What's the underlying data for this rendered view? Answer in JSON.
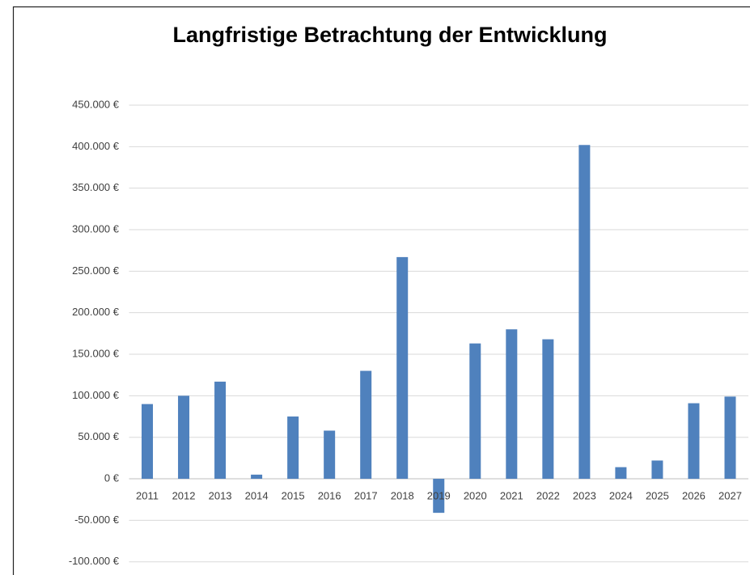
{
  "chart_data": {
    "type": "bar",
    "title": "Langfristige Betrachtung der Entwicklung",
    "categories": [
      "2011",
      "2012",
      "2013",
      "2014",
      "2015",
      "2016",
      "2017",
      "2018",
      "2019",
      "2020",
      "2021",
      "2022",
      "2023",
      "2024",
      "2025",
      "2026",
      "2027"
    ],
    "values": [
      90000,
      100000,
      117000,
      5000,
      75000,
      58000,
      130000,
      267000,
      -41000,
      163000,
      180000,
      168000,
      402000,
      14000,
      22000,
      91000,
      99000
    ],
    "color": "#4f81bd",
    "ylim": [
      -100000,
      450000
    ],
    "yticks": [
      {
        "value": -100000,
        "label": "-100.000 €"
      },
      {
        "value": -50000,
        "label": "-50.000 €"
      },
      {
        "value": 0,
        "label": "0 €"
      },
      {
        "value": 50000,
        "label": "50.000 €"
      },
      {
        "value": 100000,
        "label": "100.000 €"
      },
      {
        "value": 150000,
        "label": "150.000 €"
      },
      {
        "value": 200000,
        "label": "200.000 €"
      },
      {
        "value": 250000,
        "label": "250.000 €"
      },
      {
        "value": 300000,
        "label": "300.000 €"
      },
      {
        "value": 350000,
        "label": "350.000 €"
      },
      {
        "value": 400000,
        "label": "400.000 €"
      },
      {
        "value": 450000,
        "label": "450.000 €"
      }
    ],
    "grid": true
  }
}
